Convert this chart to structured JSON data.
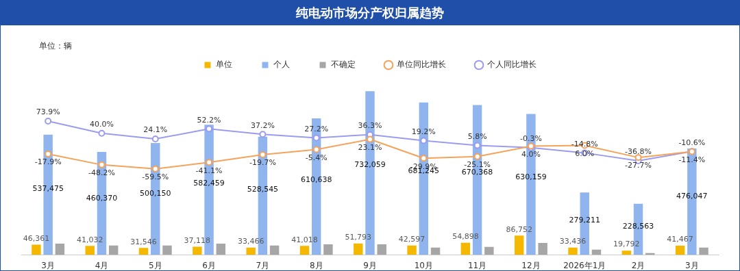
{
  "chart_data": {
    "type": "bar",
    "title": "纯电动市场分产权归属趋势",
    "annotations": [
      "单位：辆"
    ],
    "categories": [
      "3月",
      "4月",
      "5月",
      "6月",
      "7月",
      "8月",
      "9月",
      "10月",
      "11月",
      "12月",
      "2026年1月",
      "2月",
      "3月"
    ],
    "tick_labels": "x",
    "grid": false,
    "legend": "top",
    "marker": "circle",
    "series": [
      {
        "name": "单位",
        "color": "#f5b800",
        "values": [
          46361,
          41032,
          31546,
          37118,
          33466,
          41018,
          51793,
          42597,
          54898,
          86752,
          33436,
          19792,
          41467
        ],
        "value_labels": [
          "46,361",
          "41,032",
          "31,546",
          "37,118",
          "33,466",
          "41,018",
          "51,793",
          "42,597",
          "54,898",
          "86,752",
          "33,436",
          "19,792",
          "41,467"
        ]
      },
      {
        "name": "个人",
        "color": "#8fb4ee",
        "values": [
          537475,
          460370,
          500150,
          582459,
          528545,
          610638,
          732059,
          681245,
          670368,
          630159,
          279211,
          228563,
          476047
        ],
        "value_labels": [
          "537,475",
          "460,370",
          "500,150",
          "582,459",
          "528,545",
          "610,638",
          "732,059",
          "681,245",
          "670,368",
          "630,159",
          "279,211",
          "228,563",
          "476,047"
        ]
      },
      {
        "name": "不确定",
        "color": "#a6a6a6",
        "values": [
          51000,
          42000,
          42000,
          51000,
          42000,
          48000,
          48000,
          33000,
          36000,
          54000,
          24000,
          9000,
          33000
        ]
      },
      {
        "name": "单位同比增长",
        "type": "line",
        "axis": "y2",
        "color": "#f5a35a",
        "values": [
          -17.9,
          -48.2,
          -59.5,
          -41.1,
          -19.7,
          -5.4,
          23.1,
          -29.9,
          -25.1,
          4.0,
          6.0,
          -27.7,
          -11.4
        ],
        "value_labels": [
          "-17.9%",
          "-48.2%",
          "-59.5%",
          "-41.1%",
          "-19.7%",
          "-5.4%",
          "23.1%",
          "-29.9%",
          "-25.1%",
          "4.0%",
          "6.0%",
          "-27.7%",
          "-11.4%"
        ]
      },
      {
        "name": "个人同比增长",
        "type": "line",
        "axis": "y2",
        "color": "#9b9bf0",
        "values": [
          73.9,
          40.0,
          24.1,
          52.2,
          37.2,
          27.2,
          36.3,
          19.2,
          5.8,
          -0.3,
          -14.8,
          -36.8,
          -10.6
        ],
        "value_labels": [
          "73.9%",
          "40.0%",
          "24.1%",
          "52.2%",
          "37.2%",
          "27.2%",
          "36.3%",
          "19.2%",
          "5.8%",
          "-0.3%",
          "-14.8%",
          "-36.8%",
          "-10.6%"
        ]
      }
    ]
  }
}
